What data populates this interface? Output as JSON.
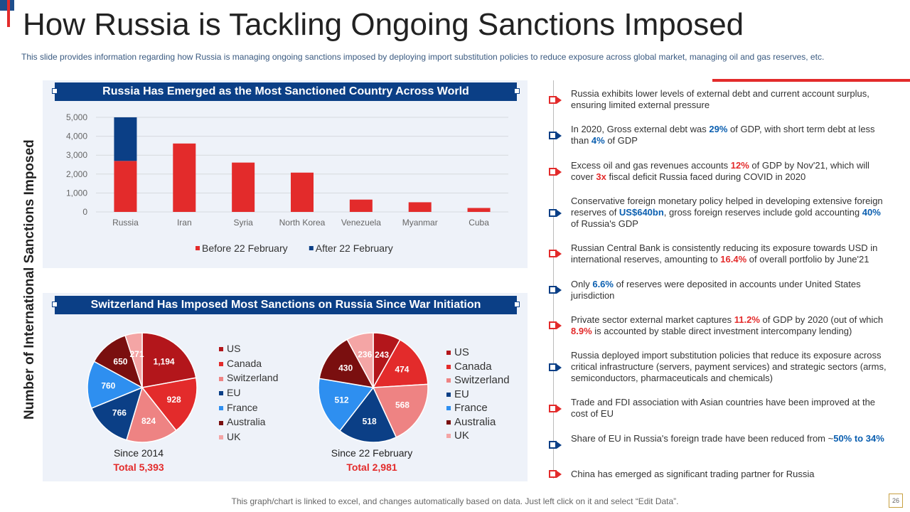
{
  "title": "How Russia is Tackling Ongoing Sanctions Imposed",
  "subtitle": "This slide provides information regarding how Russia is managing ongoing sanctions imposed by deploying import substitution policies to reduce exposure across global market, managing oil and gas reserves, etc.",
  "y_axis_title": "Number of International Sanctions Imposed",
  "colors": {
    "red": "#e32b2b",
    "blue": "#0b3f86"
  },
  "chart_data": [
    {
      "type": "bar",
      "title": "Russia Has Emerged as the Most Sanctioned Country Across World",
      "categories": [
        "Russia",
        "Iran",
        "Syria",
        "North Korea",
        "Venezuela",
        "Myanmar",
        "Cuba"
      ],
      "series": [
        {
          "name": "Before 22 February",
          "values": [
            2695,
            3616,
            2608,
            2077,
            651,
            510,
            208
          ],
          "color": "#e32b2b"
        },
        {
          "name": "After 22 February",
          "values": [
            2306,
            0,
            0,
            0,
            0,
            0,
            0
          ],
          "color": "#0b3f86"
        }
      ],
      "y_ticks": [
        "0",
        "1,000",
        "2,000",
        "3,000",
        "4,000",
        "5,000"
      ],
      "ylim": [
        0,
        5000
      ],
      "stacked": true
    },
    {
      "type": "pie",
      "title": "Switzerland Has Imposed Most Sanctions on Russia Since War Initiation",
      "caption": "Since 2014",
      "total": "Total 5,393",
      "labels": [
        "US",
        "Canada",
        "Switzerland",
        "EU",
        "France",
        "Australia",
        "UK"
      ],
      "values": [
        1194,
        928,
        824,
        766,
        760,
        650,
        271
      ],
      "value_labels": [
        "1,194",
        "928",
        "824",
        "766",
        "760",
        "650",
        "271"
      ],
      "colors": [
        "#b3161b",
        "#e32b2b",
        "#ee8383",
        "#0b3f86",
        "#2e8ff0",
        "#7a0f0f",
        "#f4a5a5"
      ]
    },
    {
      "type": "pie",
      "caption": "Since 22 February",
      "total": "Total 2,981",
      "labels": [
        "US",
        "Canada",
        "Switzerland",
        "EU",
        "France",
        "Australia",
        "UK"
      ],
      "values": [
        243,
        474,
        568,
        518,
        512,
        430,
        236
      ],
      "value_labels": [
        "243",
        "474",
        "568",
        "518",
        "512",
        "430",
        "236"
      ],
      "colors": [
        "#b3161b",
        "#e32b2b",
        "#ee8383",
        "#0b3f86",
        "#2e8ff0",
        "#7a0f0f",
        "#f4a5a5"
      ]
    }
  ],
  "bullets": [
    {
      "color": "red",
      "parts": [
        [
          "Russia exhibits lower levels of external debt and current account surplus, ensuring limited external pressure",
          ""
        ]
      ]
    },
    {
      "color": "blue",
      "parts": [
        [
          "In 2020, Gross external debt was ",
          ""
        ],
        [
          "29%",
          "b"
        ],
        [
          " of GDP, with short term debt at less than ",
          ""
        ],
        [
          "4%",
          "b"
        ],
        [
          " of GDP",
          ""
        ]
      ]
    },
    {
      "color": "red",
      "parts": [
        [
          "Excess oil and gas revenues accounts ",
          ""
        ],
        [
          "12%",
          "r"
        ],
        [
          " of GDP by Nov'21, which will cover ",
          ""
        ],
        [
          "3x",
          "r"
        ],
        [
          " fiscal deficit Russia faced during COVID in 2020",
          ""
        ]
      ]
    },
    {
      "color": "blue",
      "parts": [
        [
          "Conservative foreign monetary policy helped in developing extensive foreign reserves of ",
          ""
        ],
        [
          "US$640bn",
          "b"
        ],
        [
          ", gross foreign reserves include gold accounting ",
          ""
        ],
        [
          "40%",
          "b"
        ],
        [
          " of Russia's GDP",
          ""
        ]
      ]
    },
    {
      "color": "red",
      "parts": [
        [
          "Russian Central Bank is consistently reducing its exposure towards USD in international reserves, amounting to ",
          ""
        ],
        [
          "16.4%",
          "r"
        ],
        [
          " of overall portfolio by June'21",
          ""
        ]
      ]
    },
    {
      "color": "blue",
      "parts": [
        [
          "Only ",
          ""
        ],
        [
          "6.6%",
          "b"
        ],
        [
          " of reserves were deposited in accounts under United States jurisdiction",
          ""
        ]
      ]
    },
    {
      "color": "red",
      "parts": [
        [
          "Private sector external market captures ",
          ""
        ],
        [
          "11.2%",
          "r"
        ],
        [
          " of GDP by 2020 (out of which ",
          ""
        ],
        [
          "8.9%",
          "r"
        ],
        [
          " is accounted by stable direct investment intercompany lending)",
          ""
        ]
      ]
    },
    {
      "color": "blue",
      "parts": [
        [
          "Russia deployed import substitution policies that reduce its exposure across critical infrastructure (servers, payment services) and strategic sectors (arms, semiconductors, pharmaceuticals and chemicals)",
          ""
        ]
      ]
    },
    {
      "color": "red",
      "parts": [
        [
          "Trade and FDI association with Asian countries have been improved at the cost of EU",
          ""
        ]
      ]
    },
    {
      "color": "blue",
      "parts": [
        [
          "Share of EU in Russia's foreign trade have been reduced from ~",
          ""
        ],
        [
          "50% to 34%",
          "b"
        ]
      ]
    },
    {
      "color": "red",
      "parts": [
        [
          "China has emerged as significant trading partner for Russia",
          ""
        ]
      ]
    }
  ],
  "footer": "This graph/chart is linked to excel, and changes automatically based on data. Just left click on it and select “Edit Data”.",
  "page_number": "26"
}
